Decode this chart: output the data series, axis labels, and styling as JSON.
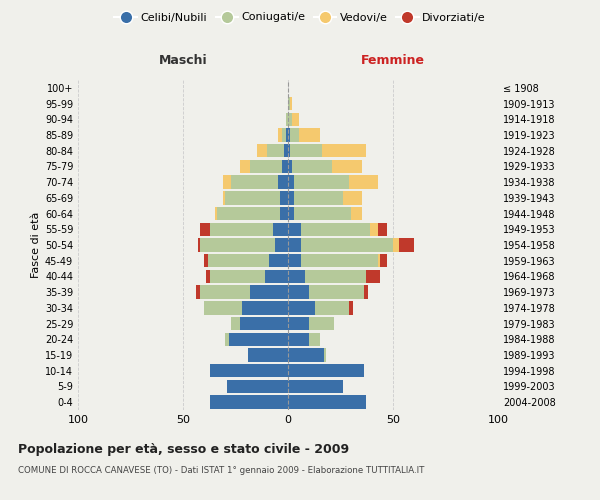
{
  "age_groups": [
    "0-4",
    "5-9",
    "10-14",
    "15-19",
    "20-24",
    "25-29",
    "30-34",
    "35-39",
    "40-44",
    "45-49",
    "50-54",
    "55-59",
    "60-64",
    "65-69",
    "70-74",
    "75-79",
    "80-84",
    "85-89",
    "90-94",
    "95-99",
    "100+"
  ],
  "birth_years": [
    "2004-2008",
    "1999-2003",
    "1994-1998",
    "1989-1993",
    "1984-1988",
    "1979-1983",
    "1974-1978",
    "1969-1973",
    "1964-1968",
    "1959-1963",
    "1954-1958",
    "1949-1953",
    "1944-1948",
    "1939-1943",
    "1934-1938",
    "1929-1933",
    "1924-1928",
    "1919-1923",
    "1914-1918",
    "1909-1913",
    "≤ 1908"
  ],
  "colors": {
    "celibi": "#3a6fa8",
    "coniugati": "#b5c99a",
    "vedovi": "#f5c96e",
    "divorziati": "#c0392b"
  },
  "maschi": {
    "celibi": [
      37,
      29,
      37,
      19,
      28,
      23,
      22,
      18,
      11,
      9,
      6,
      7,
      4,
      4,
      5,
      3,
      2,
      1,
      0,
      0,
      0
    ],
    "coniugati": [
      0,
      0,
      0,
      0,
      2,
      4,
      18,
      24,
      26,
      29,
      36,
      30,
      30,
      26,
      22,
      15,
      8,
      2,
      1,
      0,
      0
    ],
    "vedovi": [
      0,
      0,
      0,
      0,
      0,
      0,
      0,
      0,
      0,
      0,
      0,
      0,
      1,
      1,
      4,
      5,
      5,
      2,
      0,
      0,
      0
    ],
    "divorziati": [
      0,
      0,
      0,
      0,
      0,
      0,
      0,
      2,
      2,
      2,
      1,
      5,
      0,
      0,
      0,
      0,
      0,
      0,
      0,
      0,
      0
    ]
  },
  "femmine": {
    "celibi": [
      37,
      26,
      36,
      17,
      10,
      10,
      13,
      10,
      8,
      6,
      6,
      6,
      3,
      3,
      3,
      2,
      1,
      1,
      0,
      0,
      0
    ],
    "coniugati": [
      0,
      0,
      0,
      1,
      5,
      12,
      16,
      26,
      29,
      37,
      44,
      33,
      27,
      23,
      26,
      19,
      15,
      4,
      2,
      1,
      0
    ],
    "vedovi": [
      0,
      0,
      0,
      0,
      0,
      0,
      0,
      0,
      0,
      1,
      3,
      4,
      5,
      9,
      14,
      14,
      21,
      10,
      3,
      1,
      0
    ],
    "divorziati": [
      0,
      0,
      0,
      0,
      0,
      0,
      2,
      2,
      7,
      3,
      7,
      4,
      0,
      0,
      0,
      0,
      0,
      0,
      0,
      0,
      0
    ]
  },
  "xlim": 100,
  "title": "Popolazione per età, sesso e stato civile - 2009",
  "subtitle": "COMUNE DI ROCCA CANAVESE (TO) - Dati ISTAT 1° gennaio 2009 - Elaborazione TUTTITALIA.IT",
  "ylabel_left": "Fasce di età",
  "xlabel_left": "Maschi",
  "xlabel_right": "Femmine",
  "legend_labels": [
    "Celibi/Nubili",
    "Coniugati/e",
    "Vedovi/e",
    "Divorziati/e"
  ],
  "background_color": "#f0f0eb"
}
